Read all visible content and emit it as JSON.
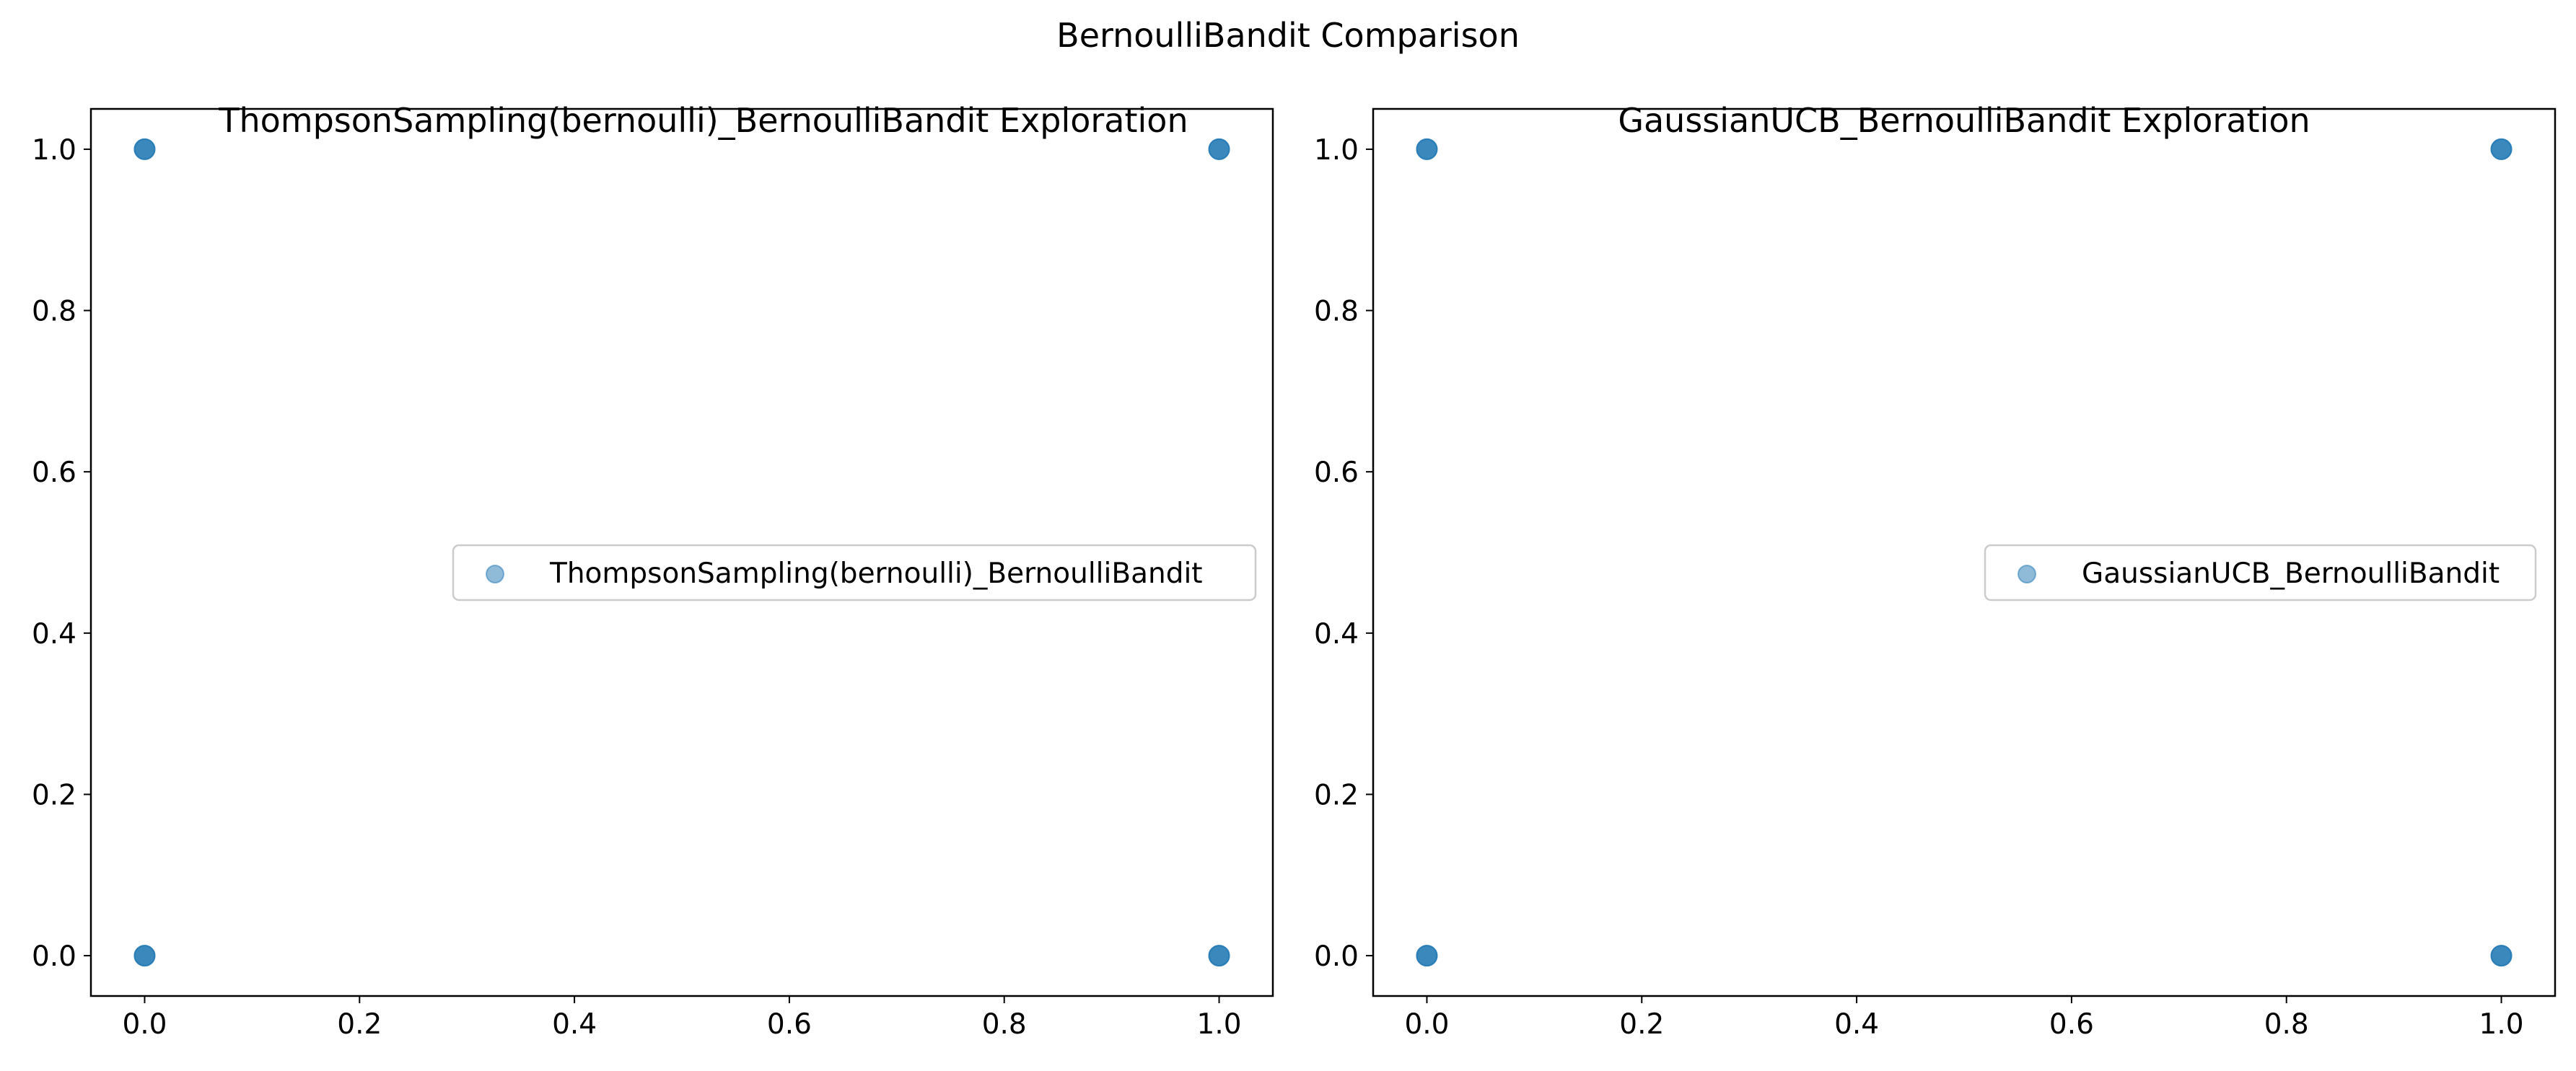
{
  "figure": {
    "title": "BernoulliBandit Comparison"
  },
  "chart_data": [
    {
      "type": "scatter",
      "title": "ThompsonSampling(bernoulli)_BernoulliBandit Exploration",
      "xlabel": "",
      "ylabel": "",
      "xlim": [
        -0.05,
        1.05
      ],
      "ylim": [
        -0.05,
        1.05
      ],
      "xticks": [
        0.0,
        0.2,
        0.4,
        0.6,
        0.8,
        1.0
      ],
      "yticks": [
        0.0,
        0.2,
        0.4,
        0.6,
        0.8,
        1.0
      ],
      "xtick_labels": [
        "0.0",
        "0.2",
        "0.4",
        "0.6",
        "0.8",
        "1.0"
      ],
      "ytick_labels": [
        "0.0",
        "0.2",
        "0.4",
        "0.6",
        "0.8",
        "1.0"
      ],
      "grid": false,
      "legend_position": "center-right",
      "series": [
        {
          "name": "ThompsonSampling(bernoulli)_BernoulliBandit",
          "color": "#1f77b4",
          "alpha": 0.5,
          "x": [
            0,
            0,
            1,
            1
          ],
          "y": [
            0,
            1,
            0,
            1
          ]
        }
      ]
    },
    {
      "type": "scatter",
      "title": "GaussianUCB_BernoulliBandit Exploration",
      "xlabel": "",
      "ylabel": "",
      "xlim": [
        -0.05,
        1.05
      ],
      "ylim": [
        -0.05,
        1.05
      ],
      "xticks": [
        0.0,
        0.2,
        0.4,
        0.6,
        0.8,
        1.0
      ],
      "yticks": [
        0.0,
        0.2,
        0.4,
        0.6,
        0.8,
        1.0
      ],
      "xtick_labels": [
        "0.0",
        "0.2",
        "0.4",
        "0.6",
        "0.8",
        "1.0"
      ],
      "ytick_labels": [
        "0.0",
        "0.2",
        "0.4",
        "0.6",
        "0.8",
        "1.0"
      ],
      "grid": false,
      "legend_position": "center-right",
      "series": [
        {
          "name": "GaussianUCB_BernoulliBandit",
          "color": "#1f77b4",
          "alpha": 0.5,
          "x": [
            0,
            0,
            1,
            1
          ],
          "y": [
            0,
            1,
            0,
            1
          ]
        }
      ]
    }
  ]
}
